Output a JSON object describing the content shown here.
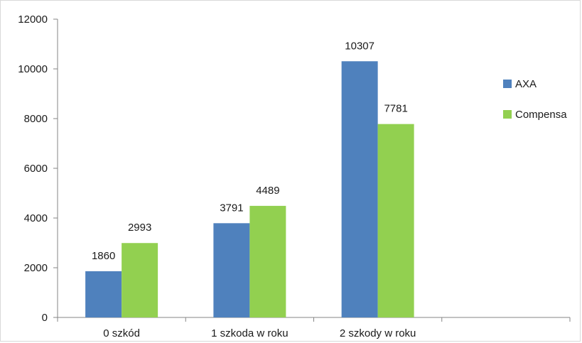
{
  "chart_data": {
    "type": "bar",
    "title": "",
    "xlabel": "",
    "ylabel": "",
    "categories": [
      "0 szkód",
      "1 szkoda w roku",
      "2 szkody w roku",
      ""
    ],
    "series": [
      {
        "name": "AXA",
        "values": [
          1860,
          3791,
          10307,
          null
        ],
        "color": "#4f81bd"
      },
      {
        "name": "Compensa",
        "values": [
          2993,
          4489,
          7781,
          null
        ],
        "color": "#92d050"
      }
    ],
    "ylim": [
      0,
      12000
    ],
    "yticks": [
      "0",
      "2000",
      "4000",
      "6000",
      "8000",
      "10000",
      "12000"
    ],
    "grid": false,
    "legend_position": "right"
  }
}
